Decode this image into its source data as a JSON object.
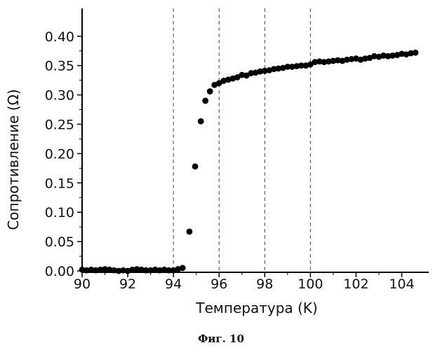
{
  "chart_data": {
    "type": "scatter",
    "title": "",
    "xlabel": "Температура (K)",
    "ylabel": "Сопротивление (Ω)",
    "xlim": [
      90,
      105
    ],
    "ylim": [
      0,
      0.42
    ],
    "xticks": [
      90,
      92,
      94,
      96,
      98,
      100,
      102,
      104
    ],
    "xtick_labels": [
      "90",
      "92",
      "94",
      "96",
      "98",
      "100",
      "102",
      "104"
    ],
    "yticks": [
      0.0,
      0.05,
      0.1,
      0.15,
      0.2,
      0.25,
      0.3,
      0.35,
      0.4
    ],
    "ytick_labels": [
      "0.00",
      "0.05",
      "0.10",
      "0.15",
      "0.20",
      "0.25",
      "0.30",
      "0.35",
      "0.40"
    ],
    "vertical_reference_lines": [
      94,
      96,
      98,
      100
    ],
    "grid": false,
    "legend": "none",
    "point_color": "#000000",
    "series": [
      {
        "x": [
          90.0,
          90.2,
          90.4,
          90.6,
          90.8,
          91.0,
          91.2,
          91.4,
          91.6,
          91.8,
          92.0,
          92.2,
          92.4,
          92.6,
          92.8,
          93.0,
          93.2,
          93.4,
          93.6,
          93.8,
          94.0,
          94.2,
          94.4,
          94.7,
          94.95,
          95.2,
          95.4,
          95.6,
          95.8,
          96.0,
          96.2,
          96.4,
          96.6,
          96.8,
          97.0,
          97.2,
          97.4,
          97.6,
          97.8,
          98.0,
          98.2,
          98.4,
          98.6,
          98.8,
          99.0,
          99.2,
          99.4,
          99.6,
          99.8,
          100.0,
          100.2,
          100.4,
          100.6,
          100.8,
          101.0,
          101.2,
          101.4,
          101.6,
          101.8,
          102.0,
          102.2,
          102.4,
          102.6,
          102.8,
          103.0,
          103.2,
          103.4,
          103.6,
          103.8,
          104.0,
          104.2,
          104.4,
          104.6
        ],
        "y": [
          0.002,
          0.001,
          0.002,
          0.001,
          0.002,
          0.003,
          0.002,
          0.001,
          0.0,
          0.001,
          0.0,
          0.002,
          0.003,
          0.002,
          0.001,
          0.001,
          0.002,
          0.001,
          0.002,
          0.001,
          0.001,
          0.003,
          0.005,
          0.067,
          0.178,
          0.255,
          0.29,
          0.306,
          0.317,
          0.32,
          0.324,
          0.326,
          0.328,
          0.33,
          0.334,
          0.333,
          0.337,
          0.338,
          0.34,
          0.341,
          0.342,
          0.344,
          0.345,
          0.346,
          0.348,
          0.348,
          0.349,
          0.35,
          0.35,
          0.352,
          0.356,
          0.357,
          0.356,
          0.357,
          0.358,
          0.359,
          0.358,
          0.36,
          0.361,
          0.362,
          0.36,
          0.362,
          0.363,
          0.366,
          0.365,
          0.367,
          0.366,
          0.367,
          0.368,
          0.37,
          0.369,
          0.371,
          0.372
        ]
      }
    ]
  },
  "caption": "Фиг. 10"
}
